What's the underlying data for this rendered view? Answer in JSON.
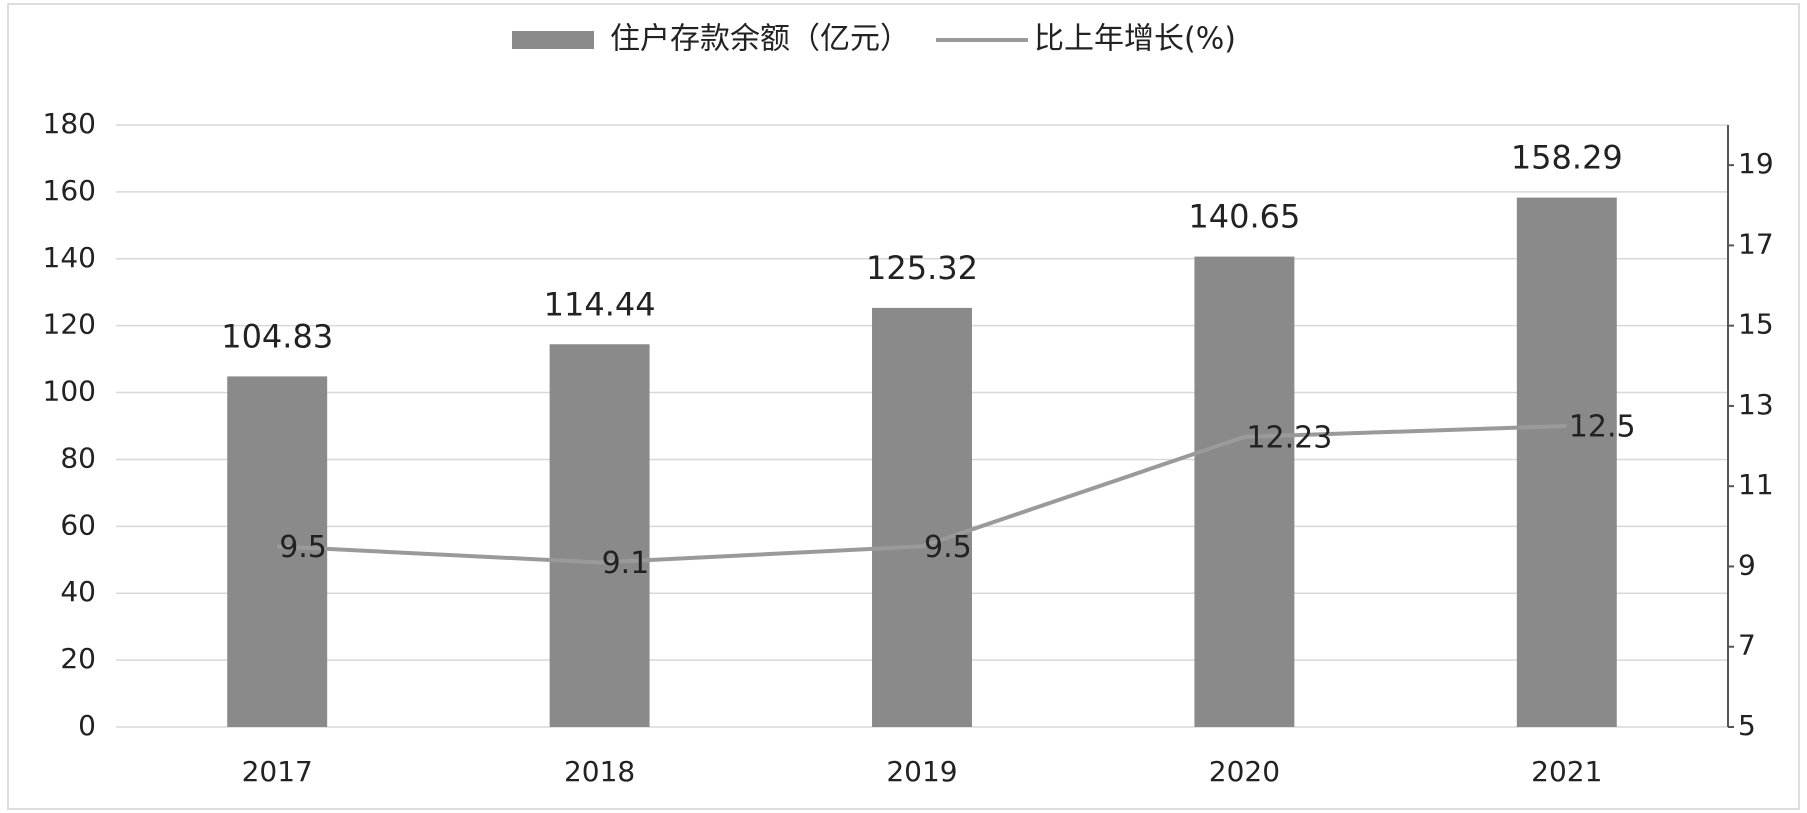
{
  "chart_data": {
    "type": "bar",
    "categories": [
      "2017",
      "2018",
      "2019",
      "2020",
      "2021"
    ],
    "series": [
      {
        "name": "住户存款余额（亿元）",
        "type": "bar",
        "color": "#8a8a8a",
        "values": [
          104.83,
          114.44,
          125.32,
          140.65,
          158.29
        ]
      },
      {
        "name": "比上年增长(%)",
        "type": "line",
        "axis": "y2",
        "color": "#9a9a9a",
        "values": [
          9.5,
          9.1,
          9.5,
          12.23,
          12.5
        ]
      }
    ],
    "ylim": [
      0,
      180
    ],
    "yticks": [
      0,
      20,
      40,
      60,
      80,
      100,
      120,
      140,
      160,
      180
    ],
    "y2lim": [
      5,
      20
    ],
    "y2ticks": [
      5,
      7,
      9,
      11,
      13,
      15,
      17,
      19
    ],
    "grid": true,
    "legend": "top"
  }
}
